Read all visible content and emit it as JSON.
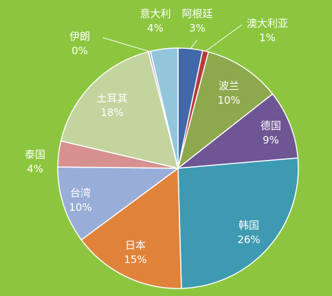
{
  "chart_data": {
    "type": "pie",
    "title": "",
    "legend": "none",
    "slices": [
      {
        "name": "阿根廷",
        "label": "3%",
        "value": 3.3,
        "color": "#4168A8"
      },
      {
        "name": "澳大利亚",
        "label": "1%",
        "value": 0.8,
        "color": "#B83A39"
      },
      {
        "name": "波兰",
        "label": "10%",
        "value": 10.4,
        "color": "#8EA84E"
      },
      {
        "name": "德国",
        "label": "9%",
        "value": 9.3,
        "color": "#6E5593"
      },
      {
        "name": "韩国",
        "label": "26%",
        "value": 26.1,
        "color": "#3D9AB1"
      },
      {
        "name": "日本",
        "label": "15%",
        "value": 15.4,
        "color": "#E0833A"
      },
      {
        "name": "台湾",
        "label": "10%",
        "value": 10.4,
        "color": "#98AED8"
      },
      {
        "name": "泰国",
        "label": "4%",
        "value": 3.5,
        "color": "#D79191"
      },
      {
        "name": "土耳其",
        "label": "18%",
        "value": 17.5,
        "color": "#C4D49F"
      },
      {
        "name": "伊朗",
        "label": "0%",
        "value": 0.3,
        "color": "#B9ADD0"
      },
      {
        "name": "意大利",
        "label": "4%",
        "value": 3.7,
        "color": "#93C6DB"
      }
    ]
  }
}
